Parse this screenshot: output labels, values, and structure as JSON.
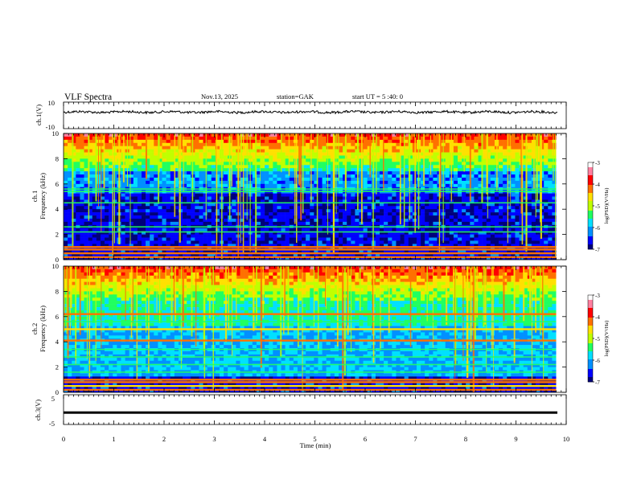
{
  "header": {
    "title": "VLF Spectra",
    "date": "Nov.13, 2025",
    "station": "station=GAK",
    "start_ut": "start  UT =  5 :40: 0"
  },
  "chart_data": [
    {
      "type": "line",
      "name": "ch1-waveform",
      "ylabel": "ch.1(V)",
      "ylim": [
        -10,
        10
      ],
      "ytick_labels": [
        "10",
        "-10"
      ],
      "xlim": [
        0,
        10
      ],
      "note_level": 2.5
    },
    {
      "type": "heatmap",
      "name": "ch1-spectrogram",
      "ylabel_line1": "ch.1",
      "ylabel_line2": "Frequency (kHz)",
      "ylim": [
        0,
        10
      ],
      "y_ticks": [
        "0",
        "2",
        "4",
        "6",
        "8",
        "10"
      ],
      "xlim": [
        0,
        10
      ],
      "data_x_end_min": 9.8,
      "colorbar": {
        "label": "log(PSD)(V²/Hz)",
        "range": [
          -7,
          -3
        ],
        "ticks": [
          "-3",
          "-4",
          "-5",
          "-6",
          "-7"
        ],
        "colors": [
          "#00007a",
          "#0000ff",
          "#0090ff",
          "#00e0ff",
          "#20ff60",
          "#c0ff00",
          "#ffe000",
          "#ff7000",
          "#ff0000",
          "#ff80a0",
          "#ffffff"
        ]
      },
      "bright_bands_khz": [
        1.0,
        0.8,
        0.5,
        0.2
      ],
      "medium_bands_khz": [
        5.4,
        5.6,
        2.6,
        2.2,
        4.5
      ]
    },
    {
      "type": "heatmap",
      "name": "ch2-spectrogram",
      "ylabel_line1": "ch.2",
      "ylabel_line2": "Frequency (kHz)",
      "ylim": [
        0,
        10
      ],
      "y_ticks": [
        "0",
        "2",
        "4",
        "6",
        "8",
        "10"
      ],
      "xlim": [
        0,
        10
      ],
      "data_x_end_min": 9.8,
      "colorbar": {
        "label": "log(PSD)(V²/Hz)",
        "range": [
          -7,
          -3
        ],
        "ticks": [
          "-3",
          "-4",
          "-5",
          "-6",
          "-7"
        ],
        "colors": [
          "#00007a",
          "#0000ff",
          "#0090ff",
          "#00e0ff",
          "#20ff60",
          "#c0ff00",
          "#ffe000",
          "#ff7000",
          "#ff0000",
          "#ff80a0",
          "#ffffff"
        ]
      },
      "bright_bands_khz": [
        6.2,
        5.0,
        4.1,
        1.0,
        0.8,
        0.5,
        0.2
      ],
      "medium_bands_khz": [
        5.6,
        3.4,
        2.8,
        2.2,
        1.6
      ]
    },
    {
      "type": "line",
      "name": "ch3-waveform",
      "ylabel": "ch.3(V)",
      "ylim": [
        -5,
        5
      ],
      "ytick_labels": [
        "5",
        "-5"
      ],
      "xlim": [
        0,
        10
      ],
      "level": -1.0
    }
  ],
  "xaxis": {
    "label": "Time  (min)",
    "ticks": [
      "0",
      "1",
      "2",
      "3",
      "4",
      "5",
      "6",
      "7",
      "8",
      "9",
      "10"
    ]
  }
}
